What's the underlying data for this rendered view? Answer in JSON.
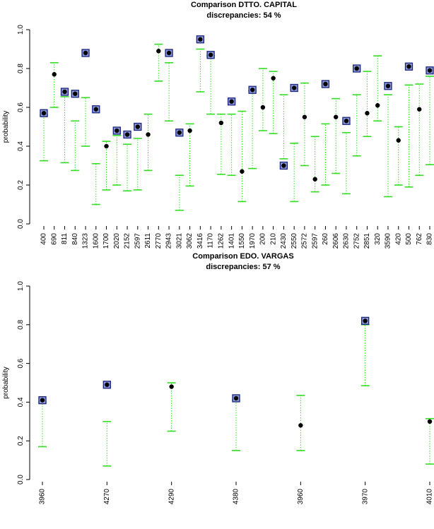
{
  "chart_data": [
    {
      "type": "interval",
      "title": "Comparison DTTO. CAPITAL",
      "subtitle": "discrepancies: 54 %",
      "ylabel": "probability",
      "categories": [
        "400",
        "690",
        "811",
        "840",
        "1323",
        "1600",
        "1700",
        "2020",
        "2152",
        "2597",
        "2611",
        "2770",
        "2943",
        "3021",
        "3062",
        "3416",
        "1170",
        "1262",
        "1401",
        "1550",
        "1970",
        "200",
        "210",
        "2430",
        "2550",
        "2572",
        "2597",
        "260",
        "2606",
        "2630",
        "2752",
        "2851",
        "320",
        "3590",
        "420",
        "500",
        "762",
        "830"
      ],
      "values": [
        0.57,
        0.77,
        0.68,
        0.67,
        0.88,
        0.59,
        0.4,
        0.48,
        0.46,
        0.5,
        0.46,
        0.89,
        0.88,
        0.47,
        0.48,
        0.95,
        0.87,
        0.52,
        0.63,
        0.27,
        0.69,
        0.6,
        0.75,
        0.3,
        0.7,
        0.55,
        0.23,
        0.72,
        0.55,
        0.53,
        0.8,
        0.57,
        0.61,
        0.71,
        0.43,
        0.81,
        0.59,
        0.79
      ],
      "lower": [
        0.325,
        0.6,
        0.315,
        0.275,
        0.4,
        0.1,
        0.175,
        0.2,
        0.17,
        0.175,
        0.275,
        0.735,
        0.53,
        0.07,
        0.195,
        0.68,
        0.565,
        0.255,
        0.25,
        0.115,
        0.285,
        0.48,
        0.465,
        0.335,
        0.115,
        0.3,
        0.165,
        0.2,
        0.26,
        0.155,
        0.35,
        0.45,
        0.53,
        0.14,
        0.2,
        0.19,
        0.25,
        0.305
      ],
      "upper": [
        0.56,
        0.83,
        0.655,
        0.53,
        0.65,
        0.31,
        0.425,
        0.455,
        0.41,
        0.44,
        0.565,
        0.925,
        0.83,
        0.25,
        0.515,
        0.9,
        0.865,
        0.565,
        0.565,
        0.58,
        0.685,
        0.8,
        0.785,
        0.665,
        0.415,
        0.725,
        0.45,
        0.515,
        0.645,
        0.47,
        0.665,
        0.785,
        0.865,
        0.665,
        0.5,
        0.715,
        0.72,
        0.76
      ],
      "ylim": [
        0,
        1
      ],
      "yticks": [
        {
          "value": 0,
          "label": "0.0"
        },
        0.2,
        0.4,
        0.6,
        0.8,
        {
          "value": 1,
          "label": "1.0"
        }
      ],
      "point_color": "#000000",
      "interval_color": "#33dd22",
      "flag_color": "#1a237e",
      "flag_fill": "#8c9ad8"
    },
    {
      "type": "interval",
      "title": "Comparison EDO. VARGAS",
      "subtitle": "discrepancies: 57 %",
      "ylabel": "probability",
      "categories": [
        "3960",
        "4270",
        "4290",
        "4380",
        "3960",
        "3970",
        "4010"
      ],
      "values": [
        0.41,
        0.49,
        0.48,
        0.42,
        0.28,
        0.82,
        0.3
      ],
      "lower": [
        0.17,
        0.07,
        0.25,
        0.15,
        0.15,
        0.485,
        0.08
      ],
      "upper": [
        0.4,
        0.3,
        0.5,
        0.41,
        0.435,
        0.8,
        0.315
      ],
      "ylim": [
        0,
        1
      ],
      "yticks": [
        {
          "value": 0,
          "label": "0.0"
        },
        0.2,
        0.4,
        0.6,
        0.8,
        {
          "value": 1,
          "label": "1.0"
        }
      ],
      "point_color": "#000000",
      "interval_color": "#33dd22",
      "flag_color": "#1a237e",
      "flag_fill": "#8c9ad8"
    }
  ]
}
